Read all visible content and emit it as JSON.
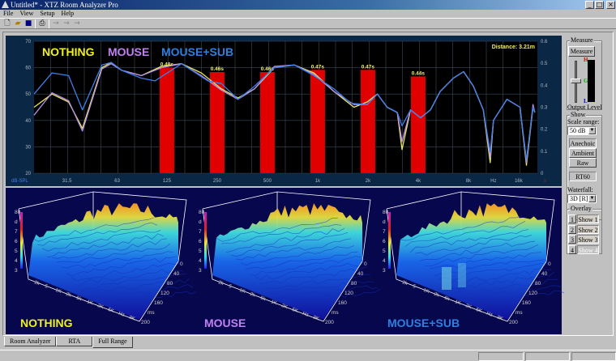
{
  "window": {
    "title": "Untitled* - XTZ Room Analyzer Pro",
    "controls": [
      "minimize",
      "maximize",
      "close"
    ]
  },
  "menu": [
    "File",
    "View",
    "Setup",
    "Help"
  ],
  "toolbar": [
    {
      "icon": "new-file-icon"
    },
    {
      "icon": "open-folder-icon"
    },
    {
      "icon": "save-icon"
    },
    {
      "icon": "print-icon"
    },
    {
      "icon": "arrow-right-icon"
    },
    {
      "icon": "arrow-right-icon"
    },
    {
      "icon": "arrow-right-icon"
    }
  ],
  "frequency_chart": {
    "legend": [
      {
        "label": "NOTHING",
        "color": "#f0f020"
      },
      {
        "label": "MOUSE",
        "color": "#c080f0"
      },
      {
        "label": "MOUSE+SUB",
        "color": "#2f7fe0"
      }
    ],
    "distance": "Distance: 3.21m",
    "left_unit": "dB-SPL",
    "right_unit": "s"
  },
  "chart_data": {
    "type": "line",
    "xscale": "log",
    "xlim": [
      20,
      20000
    ],
    "ylim": [
      20,
      70
    ],
    "y2lim": [
      0,
      0.6
    ],
    "grid": true,
    "x_ticks": [
      {
        "v": 31.5,
        "l": "31.5"
      },
      {
        "v": 63,
        "l": "63"
      },
      {
        "v": 125,
        "l": "125"
      },
      {
        "v": 250,
        "l": "250"
      },
      {
        "v": 500,
        "l": "500"
      },
      {
        "v": 1000,
        "l": "1k"
      },
      {
        "v": 2000,
        "l": "2k"
      },
      {
        "v": 4000,
        "l": "4k"
      },
      {
        "v": 8000,
        "l": "8k"
      },
      {
        "v": 11300,
        "l": "Hz"
      },
      {
        "v": 16000,
        "l": "16k"
      }
    ],
    "y_ticks": [
      20,
      30,
      40,
      50,
      60,
      70
    ],
    "y2_ticks": [
      "0",
      "0.1",
      "0.2",
      "0.3",
      "0.4",
      "0.5",
      "0.6"
    ],
    "series": [
      {
        "name": "NOTHING",
        "color": "#e8e860",
        "points": [
          [
            20,
            45
          ],
          [
            25.6,
            50
          ],
          [
            32.2,
            47
          ],
          [
            39,
            37
          ],
          [
            51,
            60
          ],
          [
            58,
            62
          ],
          [
            67,
            59
          ],
          [
            88,
            57
          ],
          [
            116,
            60.5
          ],
          [
            153,
            61.5
          ],
          [
            201,
            58
          ],
          [
            265,
            52
          ],
          [
            333,
            48.5
          ],
          [
            419,
            52
          ],
          [
            550,
            60
          ],
          [
            725,
            61
          ],
          [
            950,
            58
          ],
          [
            1250,
            51
          ],
          [
            1650,
            45
          ],
          [
            1980,
            47
          ],
          [
            2280,
            50
          ],
          [
            2610,
            45
          ],
          [
            3000,
            43
          ],
          [
            3200,
            29
          ],
          [
            3600,
            44
          ],
          [
            4130,
            41
          ],
          [
            4740,
            44
          ],
          [
            5420,
            51
          ],
          [
            6500,
            56
          ],
          [
            7490,
            58.5
          ],
          [
            8560,
            53
          ],
          [
            9830,
            44
          ],
          [
            10800,
            24
          ],
          [
            11300,
            40
          ],
          [
            13600,
            48
          ],
          [
            16300,
            45
          ],
          [
            17800,
            23
          ],
          [
            19500,
            45
          ],
          [
            20000,
            43
          ]
        ]
      },
      {
        "name": "MOUSE",
        "color": "#b890e8",
        "points": [
          [
            20,
            42
          ],
          [
            25.6,
            50.5
          ],
          [
            32.2,
            47.5
          ],
          [
            39,
            36
          ],
          [
            51,
            59.5
          ],
          [
            58,
            61.5
          ],
          [
            67,
            59
          ],
          [
            88,
            57
          ],
          [
            116,
            60
          ],
          [
            153,
            61.5
          ],
          [
            201,
            57
          ],
          [
            265,
            51.5
          ],
          [
            333,
            48
          ],
          [
            419,
            52
          ],
          [
            550,
            60.5
          ],
          [
            725,
            61
          ],
          [
            950,
            57.5
          ],
          [
            1250,
            51
          ],
          [
            1650,
            46
          ],
          [
            1980,
            46
          ],
          [
            2280,
            50
          ],
          [
            2610,
            45
          ],
          [
            3000,
            43
          ],
          [
            3200,
            32
          ],
          [
            3600,
            44
          ],
          [
            4130,
            41
          ],
          [
            4740,
            44
          ],
          [
            5420,
            51
          ],
          [
            6500,
            56
          ],
          [
            7490,
            58.5
          ],
          [
            8560,
            53
          ],
          [
            9830,
            44
          ],
          [
            10800,
            26
          ],
          [
            11300,
            40
          ],
          [
            13600,
            48
          ],
          [
            16300,
            45
          ],
          [
            17800,
            24
          ],
          [
            19500,
            46
          ],
          [
            20000,
            43
          ]
        ]
      },
      {
        "name": "MOUSE+SUB",
        "color": "#3f7fe8",
        "points": [
          [
            20,
            50
          ],
          [
            25.6,
            58
          ],
          [
            32.2,
            57
          ],
          [
            39,
            44
          ],
          [
            51,
            61
          ],
          [
            58,
            62
          ],
          [
            67,
            59
          ],
          [
            88,
            56
          ],
          [
            106,
            55
          ],
          [
            153,
            61.5
          ],
          [
            220,
            55
          ],
          [
            265,
            54
          ],
          [
            333,
            48
          ],
          [
            419,
            53
          ],
          [
            550,
            60
          ],
          [
            725,
            61
          ],
          [
            950,
            57
          ],
          [
            1250,
            52
          ],
          [
            1580,
            46.5
          ],
          [
            1980,
            46
          ],
          [
            2280,
            50
          ],
          [
            2610,
            45
          ],
          [
            3000,
            43
          ],
          [
            3200,
            38
          ],
          [
            3600,
            44
          ],
          [
            4130,
            41
          ],
          [
            4740,
            44
          ],
          [
            5420,
            51
          ],
          [
            6500,
            56
          ],
          [
            7490,
            58.5
          ],
          [
            8560,
            53
          ],
          [
            9830,
            44
          ],
          [
            10800,
            28
          ],
          [
            11300,
            40
          ],
          [
            13600,
            48
          ],
          [
            16300,
            45
          ],
          [
            17800,
            25
          ],
          [
            19500,
            45
          ],
          [
            20000,
            43
          ]
        ]
      }
    ],
    "rt60_bars": {
      "color": "#e00000",
      "bars": [
        {
          "f": 125,
          "s": 0.48,
          "l": "0.48s"
        },
        {
          "f": 250,
          "s": 0.46,
          "l": "0.46s"
        },
        {
          "f": 500,
          "s": 0.46,
          "l": "0.46s"
        },
        {
          "f": 1000,
          "s": 0.47,
          "l": "0.47s"
        },
        {
          "f": 2000,
          "s": 0.47,
          "l": "0.47s"
        },
        {
          "f": 4000,
          "s": 0.44,
          "l": "0.44s"
        }
      ]
    }
  },
  "waterfalls": [
    {
      "label": "NOTHING",
      "color": "#f0f020",
      "z_ticks": [
        "80",
        "d",
        "7",
        "6",
        "5",
        "4",
        "3"
      ],
      "x_ticks": [
        "2k",
        "5",
        "1K",
        "2k",
        "5k",
        "1K",
        "2K",
        "5K",
        "Hz",
        "9K"
      ],
      "t_ticks": [
        "0",
        "40",
        "80",
        "120",
        "160",
        "ms",
        "200"
      ]
    },
    {
      "label": "MOUSE",
      "color": "#c080f0",
      "z_ticks": [
        "80",
        "d",
        "7",
        "6",
        "5",
        "4",
        "3"
      ],
      "x_ticks": [
        "2k",
        "5",
        "1K",
        "2k",
        "5k",
        "1K",
        "2K",
        "5K",
        "Hz",
        "9K"
      ],
      "t_ticks": [
        "0",
        "40",
        "80",
        "120",
        "160",
        "ms",
        "200"
      ]
    },
    {
      "label": "MOUSE+SUB",
      "color": "#2f7fe0",
      "z_ticks": [
        "80",
        "d",
        "7",
        "6",
        "5",
        "4",
        "3"
      ],
      "x_ticks": [
        "2k",
        "5",
        "1K",
        "2k",
        "5k",
        "1K",
        "2K",
        "5K",
        "Hz",
        "9K"
      ],
      "t_ticks": [
        "0",
        "40",
        "80",
        "120",
        "160",
        "ms",
        "200"
      ]
    }
  ],
  "side": {
    "measure_group": "Measure",
    "measure_button": "Measure",
    "meter_labels": [
      "H",
      "G",
      "L"
    ],
    "output_level": "Output Level",
    "output_level_value": 0.6,
    "show_group": "Show",
    "scale_range_label": "Scale range:",
    "scale_range_value": "50 dB",
    "buttons": [
      "Anechoic",
      "Ambient",
      "Raw"
    ],
    "rt60": "RT60",
    "waterfall_label": "Waterfall:",
    "waterfall_value": "3D [R]",
    "overlay_group": "Overlay",
    "overlays": [
      {
        "n": "1",
        "l": "Show 1"
      },
      {
        "n": "2",
        "l": "Show 2"
      },
      {
        "n": "3",
        "l": "Show 3"
      },
      {
        "n": "4",
        "l": "Show 4"
      }
    ]
  },
  "tabs": [
    "Room Analyzer",
    "RTA",
    "Full Range"
  ],
  "active_tab": "Full Range"
}
